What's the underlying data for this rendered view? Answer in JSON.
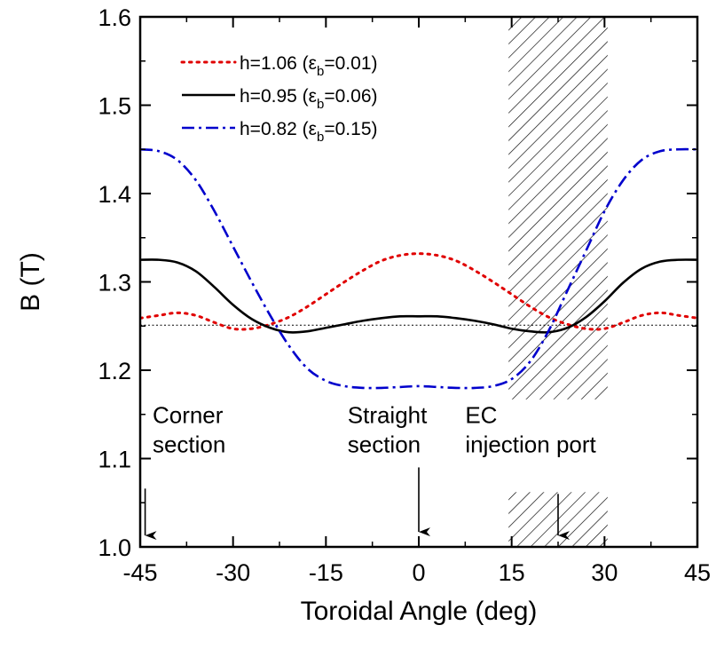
{
  "chart_data": {
    "type": "line",
    "title": "",
    "xlabel": "Toroidal Angle (deg)",
    "ylabel": "B (T)",
    "xlim": [
      -45,
      45
    ],
    "ylim": [
      1.0,
      1.6
    ],
    "xticks": [
      -45,
      -30,
      -15,
      0,
      15,
      30,
      45
    ],
    "yticks": [
      1.0,
      1.1,
      1.2,
      1.3,
      1.4,
      1.5,
      1.6
    ],
    "xtick_labels": [
      "-45",
      "-30",
      "-15",
      "0",
      "15",
      "30",
      "45"
    ],
    "ytick_labels": [
      "1.0",
      "1.1",
      "1.2",
      "1.3",
      "1.4",
      "1.5",
      "1.6"
    ],
    "legend": [
      {
        "prefix": "h=1.06 (",
        "eps": "ε",
        "sub": "b",
        "suffix": "=0.01)",
        "color": "#e00000",
        "style": "dot"
      },
      {
        "prefix": "h=0.95 (",
        "eps": "ε",
        "sub": "b",
        "suffix": "=0.06)",
        "color": "#000000",
        "style": "solid"
      },
      {
        "prefix": "h=0.82 (",
        "eps": "ε",
        "sub": "b",
        "suffix": "=0.15)",
        "color": "#0000cc",
        "style": "dashdot"
      }
    ],
    "legend_placement": "top-left",
    "series": [
      {
        "name": "h=1.06 (εb=0.01)",
        "color": "#e00000",
        "style": "dot",
        "x": [
          -45,
          -42,
          -39,
          -36,
          -33,
          -30,
          -27,
          -24,
          -21,
          -18,
          -15,
          -12,
          -9,
          -6,
          -3,
          0,
          3,
          6,
          9,
          12,
          15,
          18,
          21,
          24,
          27,
          30,
          33,
          36,
          39,
          42,
          45
        ],
        "y": [
          1.259,
          1.262,
          1.265,
          1.262,
          1.254,
          1.247,
          1.247,
          1.252,
          1.26,
          1.272,
          1.286,
          1.3,
          1.313,
          1.324,
          1.33,
          1.332,
          1.33,
          1.324,
          1.313,
          1.3,
          1.286,
          1.272,
          1.26,
          1.252,
          1.247,
          1.247,
          1.254,
          1.262,
          1.265,
          1.262,
          1.259
        ]
      },
      {
        "name": "h=0.95 (εb=0.06)",
        "color": "#000000",
        "style": "solid",
        "x": [
          -45,
          -42,
          -39,
          -36,
          -33,
          -30,
          -27,
          -24,
          -21,
          -18,
          -15,
          -12,
          -9,
          -6,
          -3,
          0,
          3,
          6,
          9,
          12,
          15,
          18,
          21,
          24,
          27,
          30,
          33,
          36,
          39,
          42,
          45
        ],
        "y": [
          1.325,
          1.325,
          1.322,
          1.312,
          1.294,
          1.274,
          1.258,
          1.248,
          1.243,
          1.244,
          1.248,
          1.252,
          1.256,
          1.259,
          1.261,
          1.261,
          1.261,
          1.259,
          1.256,
          1.252,
          1.247,
          1.244,
          1.243,
          1.248,
          1.26,
          1.278,
          1.299,
          1.315,
          1.323,
          1.325,
          1.325
        ]
      },
      {
        "name": "h=0.82 (εb=0.15)",
        "color": "#0000cc",
        "style": "dashdot",
        "x": [
          -45,
          -42,
          -39,
          -36,
          -33,
          -30,
          -27,
          -24,
          -21,
          -18,
          -15,
          -12,
          -9,
          -6,
          -3,
          0,
          3,
          6,
          9,
          12,
          15,
          18,
          21,
          24,
          27,
          30,
          33,
          36,
          39,
          42,
          45
        ],
        "y": [
          1.45,
          1.448,
          1.438,
          1.415,
          1.38,
          1.34,
          1.3,
          1.262,
          1.228,
          1.202,
          1.188,
          1.182,
          1.18,
          1.18,
          1.181,
          1.182,
          1.181,
          1.18,
          1.18,
          1.182,
          1.19,
          1.21,
          1.245,
          1.29,
          1.335,
          1.38,
          1.415,
          1.438,
          1.448,
          1.45,
          1.45
        ]
      }
    ],
    "reference_line": {
      "y": 1.251,
      "color": "#000000",
      "style": "dotted"
    },
    "shaded_regions": [
      {
        "x0": 14.5,
        "x1": 30.5,
        "y0": 1.167,
        "y1": 1.6
      },
      {
        "x0": 14.5,
        "x1": 30.5,
        "y0": 1.0,
        "y1": 1.062
      }
    ],
    "annotations": [
      {
        "lines": [
          "Corner",
          "section"
        ],
        "x": -43,
        "y": 1.14
      },
      {
        "lines": [
          "Straight",
          "section"
        ],
        "x": -11.5,
        "y": 1.14
      },
      {
        "lines": [
          "EC",
          "injection port"
        ],
        "x": 7.5,
        "y": 1.14
      }
    ],
    "arrows": [
      {
        "x": -44.2,
        "y_from": 1.066,
        "y_to": 1.013
      },
      {
        "x": 0,
        "y_from": 1.09,
        "y_to": 1.017
      },
      {
        "x": 22.5,
        "y_from": 1.06,
        "y_to": 1.013
      }
    ]
  }
}
